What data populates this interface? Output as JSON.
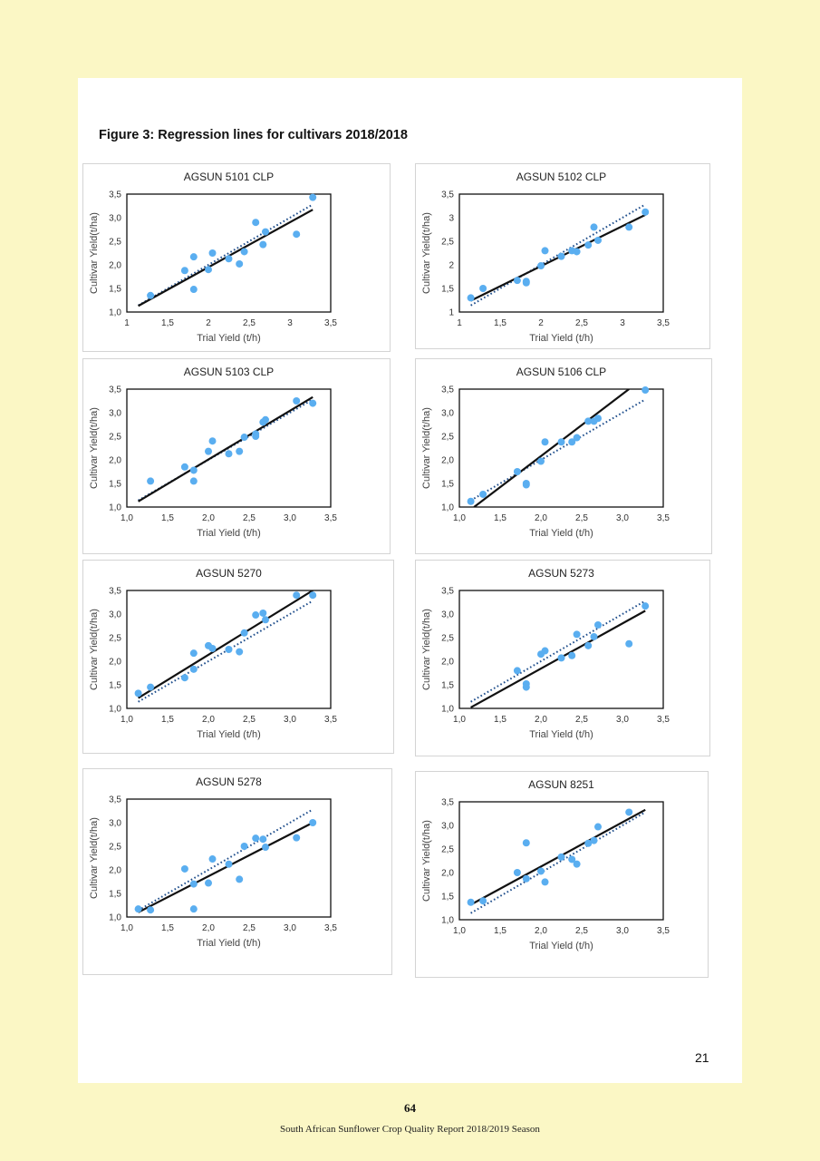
{
  "figure_title": "Figure 3: Regression lines for cultivars 2018/2018",
  "page_number": "21",
  "report_page": "64",
  "report_footer": "South African Sunflower Crop Quality Report 2018/2019 Season",
  "colors": {
    "points": "#5aaef0",
    "fit_line": "#111111",
    "reference_line": "#1f4e8c"
  },
  "chart_data": [
    {
      "type": "scatter",
      "title": "AGSUN 5101 CLP",
      "xlabel": "Trial Yield (t/h)",
      "ylabel": "Cultivar Yield(t/ha)",
      "xlim": [
        1,
        3.5
      ],
      "ylim": [
        1,
        3.5
      ],
      "xticks": [
        "1",
        "1,5",
        "2",
        "2,5",
        "3",
        "3,5"
      ],
      "yticks": [
        "1,0",
        "1,5",
        "2,0",
        "2,5",
        "3,0",
        "3,5"
      ],
      "points": [
        [
          1.29,
          1.35
        ],
        [
          1.71,
          1.88
        ],
        [
          1.82,
          2.17
        ],
        [
          1.82,
          1.48
        ],
        [
          2.0,
          1.9
        ],
        [
          2.05,
          2.25
        ],
        [
          2.25,
          2.13
        ],
        [
          2.38,
          2.02
        ],
        [
          2.44,
          2.28
        ],
        [
          2.58,
          2.9
        ],
        [
          2.67,
          2.43
        ],
        [
          2.7,
          2.7
        ],
        [
          3.08,
          2.65
        ],
        [
          3.28,
          3.43
        ]
      ],
      "fit_line": [
        [
          1.14,
          1.13
        ],
        [
          3.28,
          3.17
        ]
      ],
      "reference_line": [
        [
          1.14,
          1.14
        ],
        [
          3.28,
          3.28
        ]
      ]
    },
    {
      "type": "scatter",
      "title": "AGSUN 5102 CLP",
      "xlabel": "Trial Yield (t/h)",
      "ylabel": "Cultivar Yield(t/ha)",
      "xlim": [
        1,
        3.5
      ],
      "ylim": [
        1,
        3.5
      ],
      "xticks": [
        "1",
        "1,5",
        "2",
        "2,5",
        "3",
        "3,5"
      ],
      "yticks": [
        "1",
        "1,5",
        "2",
        "2,5",
        "3",
        "3,5"
      ],
      "points": [
        [
          1.14,
          1.3
        ],
        [
          1.29,
          1.5
        ],
        [
          1.71,
          1.67
        ],
        [
          1.82,
          1.65
        ],
        [
          1.82,
          1.62
        ],
        [
          2.0,
          1.98
        ],
        [
          2.05,
          2.3
        ],
        [
          2.25,
          2.18
        ],
        [
          2.38,
          2.3
        ],
        [
          2.44,
          2.28
        ],
        [
          2.58,
          2.42
        ],
        [
          2.65,
          2.8
        ],
        [
          2.7,
          2.52
        ],
        [
          3.08,
          2.8
        ],
        [
          3.28,
          3.12
        ]
      ],
      "fit_line": [
        [
          1.14,
          1.24
        ],
        [
          3.28,
          3.06
        ]
      ],
      "reference_line": [
        [
          1.14,
          1.14
        ],
        [
          3.28,
          3.28
        ]
      ]
    },
    {
      "type": "scatter",
      "title": "AGSUN 5103 CLP",
      "xlabel": "Trial Yield (t/h)",
      "ylabel": "Cultivar Yield(t/ha)",
      "xlim": [
        1,
        3.5
      ],
      "ylim": [
        1,
        3.5
      ],
      "xticks": [
        "1,0",
        "1,5",
        "2,0",
        "2,5",
        "3,0",
        "3,5"
      ],
      "yticks": [
        "1,0",
        "1,5",
        "2,0",
        "2,5",
        "3,0",
        "3,5"
      ],
      "points": [
        [
          1.29,
          1.55
        ],
        [
          1.71,
          1.85
        ],
        [
          1.82,
          1.78
        ],
        [
          1.82,
          1.55
        ],
        [
          2.0,
          2.18
        ],
        [
          2.05,
          2.4
        ],
        [
          2.25,
          2.13
        ],
        [
          2.38,
          2.18
        ],
        [
          2.44,
          2.48
        ],
        [
          2.58,
          2.55
        ],
        [
          2.58,
          2.5
        ],
        [
          2.67,
          2.8
        ],
        [
          2.7,
          2.85
        ],
        [
          3.08,
          3.25
        ],
        [
          3.28,
          3.2
        ]
      ],
      "fit_line": [
        [
          1.14,
          1.12
        ],
        [
          3.28,
          3.33
        ]
      ],
      "reference_line": [
        [
          1.14,
          1.14
        ],
        [
          3.28,
          3.28
        ]
      ]
    },
    {
      "type": "scatter",
      "title": "AGSUN 5106 CLP",
      "xlabel": "Trial Yield (t/h)",
      "ylabel": "Cultivar Yield(t/ha)",
      "xlim": [
        1,
        3.5
      ],
      "ylim": [
        1,
        3.5
      ],
      "xticks": [
        "1,0",
        "1,5",
        "2,0",
        "2,5",
        "3,0",
        "3,5"
      ],
      "yticks": [
        "1,0",
        "1,5",
        "2,0",
        "2,5",
        "3,0",
        "3,5"
      ],
      "points": [
        [
          1.14,
          1.12
        ],
        [
          1.29,
          1.27
        ],
        [
          1.71,
          1.75
        ],
        [
          1.82,
          1.5
        ],
        [
          1.82,
          1.47
        ],
        [
          2.0,
          1.97
        ],
        [
          2.05,
          2.38
        ],
        [
          2.25,
          2.38
        ],
        [
          2.38,
          2.38
        ],
        [
          2.44,
          2.47
        ],
        [
          2.58,
          2.82
        ],
        [
          2.65,
          2.82
        ],
        [
          2.7,
          2.88
        ],
        [
          3.28,
          3.48
        ]
      ],
      "fit_line": [
        [
          1.18,
          1.0
        ],
        [
          3.08,
          3.5
        ]
      ],
      "reference_line": [
        [
          1.14,
          1.14
        ],
        [
          3.28,
          3.28
        ]
      ]
    },
    {
      "type": "scatter",
      "title": "AGSUN 5270",
      "xlabel": "Trial Yield (t/h)",
      "ylabel": "Cultivar Yield(t/ha)",
      "xlim": [
        1,
        3.5
      ],
      "ylim": [
        1,
        3.5
      ],
      "xticks": [
        "1,0",
        "1,5",
        "2,0",
        "2,5",
        "3,0",
        "3,5"
      ],
      "yticks": [
        "1,0",
        "1,5",
        "2,0",
        "2,5",
        "3,0",
        "3,5"
      ],
      "points": [
        [
          1.14,
          1.32
        ],
        [
          1.29,
          1.45
        ],
        [
          1.71,
          1.65
        ],
        [
          1.82,
          2.17
        ],
        [
          1.82,
          1.83
        ],
        [
          2.0,
          2.33
        ],
        [
          2.05,
          2.27
        ],
        [
          2.25,
          2.25
        ],
        [
          2.38,
          2.2
        ],
        [
          2.44,
          2.6
        ],
        [
          2.58,
          2.98
        ],
        [
          2.67,
          3.02
        ],
        [
          2.7,
          2.88
        ],
        [
          3.08,
          3.4
        ],
        [
          3.28,
          3.4
        ]
      ],
      "fit_line": [
        [
          1.14,
          1.22
        ],
        [
          3.28,
          3.5
        ]
      ],
      "reference_line": [
        [
          1.14,
          1.14
        ],
        [
          3.28,
          3.28
        ]
      ]
    },
    {
      "type": "scatter",
      "title": "AGSUN 5273",
      "xlabel": "Trial Yield (t/h)",
      "ylabel": "Cultivar Yield(t/ha)",
      "xlim": [
        1,
        3.5
      ],
      "ylim": [
        1,
        3.5
      ],
      "xticks": [
        "1,0",
        "1,5",
        "2,0",
        "2,5",
        "3,0",
        "3,5"
      ],
      "yticks": [
        "1,0",
        "1,5",
        "2,0",
        "2,5",
        "3,0",
        "3,5"
      ],
      "points": [
        [
          1.71,
          1.8
        ],
        [
          1.82,
          1.52
        ],
        [
          1.82,
          1.45
        ],
        [
          2.0,
          2.15
        ],
        [
          2.05,
          2.22
        ],
        [
          2.25,
          2.07
        ],
        [
          2.38,
          2.12
        ],
        [
          2.44,
          2.57
        ],
        [
          2.58,
          2.33
        ],
        [
          2.65,
          2.52
        ],
        [
          2.7,
          2.77
        ],
        [
          3.08,
          2.37
        ],
        [
          3.28,
          3.17
        ]
      ],
      "fit_line": [
        [
          1.14,
          1.02
        ],
        [
          3.28,
          3.07
        ]
      ],
      "reference_line": [
        [
          1.14,
          1.14
        ],
        [
          3.28,
          3.28
        ]
      ]
    },
    {
      "type": "scatter",
      "title": "AGSUN 5278",
      "xlabel": "Trial Yield (t/h)",
      "ylabel": "Cultivar Yield(t/ha)",
      "xlim": [
        1,
        3.5
      ],
      "ylim": [
        1,
        3.5
      ],
      "xticks": [
        "1,0",
        "1,5",
        "2,0",
        "2,5",
        "3,0",
        "3,5"
      ],
      "yticks": [
        "1,0",
        "1,5",
        "2,0",
        "2,5",
        "3,0",
        "3,5"
      ],
      "points": [
        [
          1.14,
          1.17
        ],
        [
          1.29,
          1.15
        ],
        [
          1.71,
          2.02
        ],
        [
          1.82,
          1.7
        ],
        [
          1.82,
          1.17
        ],
        [
          2.0,
          1.72
        ],
        [
          2.05,
          2.23
        ],
        [
          2.25,
          2.12
        ],
        [
          2.38,
          1.8
        ],
        [
          2.44,
          2.5
        ],
        [
          2.58,
          2.67
        ],
        [
          2.67,
          2.65
        ],
        [
          2.7,
          2.48
        ],
        [
          3.08,
          2.68
        ],
        [
          3.28,
          3.0
        ]
      ],
      "fit_line": [
        [
          1.14,
          1.1
        ],
        [
          3.28,
          3.0
        ]
      ],
      "reference_line": [
        [
          1.14,
          1.14
        ],
        [
          3.28,
          3.28
        ]
      ]
    },
    {
      "type": "scatter",
      "title": "AGSUN 8251",
      "xlabel": "Trial Yield (t/h)",
      "ylabel": "Cultivar Yield(t/ha)",
      "xlim": [
        1,
        3.5
      ],
      "ylim": [
        1,
        3.5
      ],
      "xticks": [
        "1,0",
        "1,5",
        "2,0",
        "2,5",
        "3,0",
        "3,5"
      ],
      "yticks": [
        "1,0",
        "1,5",
        "2,0",
        "2,5",
        "3,0",
        "3,5"
      ],
      "points": [
        [
          1.14,
          1.37
        ],
        [
          1.29,
          1.4
        ],
        [
          1.71,
          2.0
        ],
        [
          1.82,
          2.63
        ],
        [
          1.82,
          1.87
        ],
        [
          2.0,
          2.03
        ],
        [
          2.05,
          1.8
        ],
        [
          2.25,
          2.33
        ],
        [
          2.38,
          2.28
        ],
        [
          2.44,
          2.18
        ],
        [
          2.58,
          2.62
        ],
        [
          2.65,
          2.68
        ],
        [
          2.7,
          2.97
        ],
        [
          3.08,
          3.28
        ]
      ],
      "fit_line": [
        [
          1.14,
          1.32
        ],
        [
          3.28,
          3.33
        ]
      ],
      "reference_line": [
        [
          1.14,
          1.14
        ],
        [
          3.28,
          3.28
        ]
      ]
    }
  ]
}
